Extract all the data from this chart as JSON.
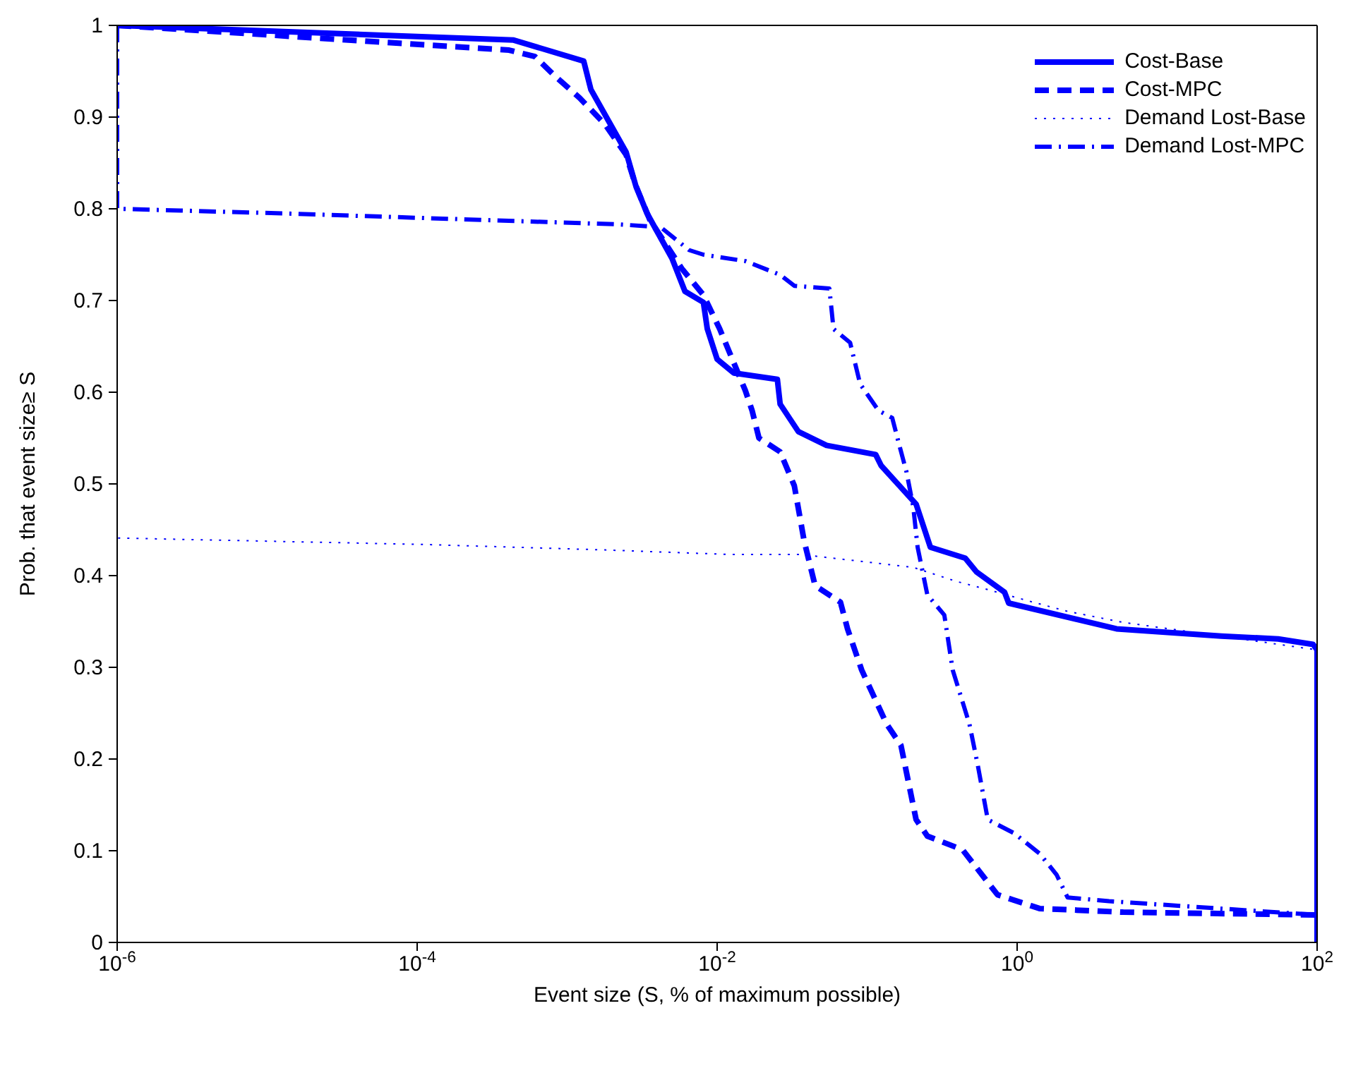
{
  "chart_data": {
    "type": "line",
    "xlabel": "Event size (S, % of maximum possible)",
    "ylabel": "Prob. that event size≥ S",
    "log": "x",
    "grid": false,
    "legend": "top right",
    "marker": "none",
    "xlim": [
      1e-06,
      100
    ],
    "xticks": [
      {
        "value": 1e-06,
        "label": "10$^{-6}$"
      },
      {
        "value": 0.0001,
        "label": "10$^{-4}$"
      },
      {
        "value": 0.01,
        "label": "10$^{-2}$"
      },
      {
        "value": 1,
        "label": "10$^{0}$"
      },
      {
        "value": 100,
        "label": "10$^{2}$"
      }
    ],
    "ylim": [
      0,
      1
    ],
    "yticks": [
      0,
      0.1,
      0.2,
      0.3,
      0.4,
      0.5,
      0.6,
      0.7,
      0.8,
      0.9,
      1
    ],
    "series": [
      {
        "name": "Cost-Base",
        "color": "#0000ff",
        "line_style": "solid",
        "x": [
          1e-06,
          0.00044,
          0.00129,
          0.00144,
          0.0019,
          0.00247,
          0.00287,
          0.00341,
          0.005,
          0.0061,
          0.0081,
          0.0086,
          0.01,
          0.0129,
          0.0252,
          0.0263,
          0.0348,
          0.0536,
          0.114,
          0.124,
          0.212,
          0.264,
          0.451,
          0.536,
          0.824,
          0.879,
          4.6,
          23,
          55,
          94,
          100,
          100
        ],
        "values": [
          1,
          0.984,
          0.961,
          0.93,
          0.895,
          0.862,
          0.825,
          0.795,
          0.746,
          0.71,
          0.698,
          0.669,
          0.636,
          0.621,
          0.614,
          0.587,
          0.557,
          0.542,
          0.532,
          0.52,
          0.478,
          0.431,
          0.419,
          0.404,
          0.382,
          0.37,
          0.342,
          0.334,
          0.331,
          0.325,
          0.319,
          0
        ]
      },
      {
        "name": "Cost-MPC",
        "color": "#0000ff",
        "line_style": "dashed",
        "x": [
          1e-06,
          0.00041,
          0.00061,
          0.00084,
          0.00121,
          0.00179,
          0.00247,
          0.00287,
          0.00356,
          0.0047,
          0.0058,
          0.0081,
          0.0104,
          0.0124,
          0.0154,
          0.0171,
          0.019,
          0.0263,
          0.0327,
          0.038,
          0.045,
          0.0664,
          0.074,
          0.092,
          0.135,
          0.168,
          0.212,
          0.252,
          0.433,
          0.74,
          1.41,
          5.1,
          100
        ],
        "values": [
          1,
          0.973,
          0.966,
          0.944,
          0.921,
          0.892,
          0.859,
          0.825,
          0.788,
          0.758,
          0.735,
          0.706,
          0.669,
          0.639,
          0.602,
          0.58,
          0.55,
          0.535,
          0.498,
          0.438,
          0.389,
          0.371,
          0.342,
          0.297,
          0.238,
          0.215,
          0.134,
          0.116,
          0.101,
          0.052,
          0.037,
          0.033,
          0.03
        ]
      },
      {
        "name": "Demand Lost-Base",
        "color": "#0000ff",
        "line_style": "dotted",
        "x": [
          1e-06,
          1e-06,
          0.000109,
          0.00179,
          0.0124,
          0.0364,
          0.086,
          0.203,
          0.388,
          0.597,
          1.28,
          2.17,
          5.1,
          23,
          100
        ],
        "values": [
          1,
          0.441,
          0.434,
          0.428,
          0.423,
          0.423,
          0.416,
          0.409,
          0.394,
          0.386,
          0.371,
          0.361,
          0.349,
          0.334,
          0.319
        ]
      },
      {
        "name": "Demand Lost-MPC",
        "color": "#0000ff",
        "line_style": "dashdot",
        "x": [
          1e-06,
          1e-06,
          1.27e-05,
          0.000109,
          0.00222,
          0.0042,
          0.0065,
          0.0081,
          0.0154,
          0.0263,
          0.0327,
          0.056,
          0.0597,
          0.077,
          0.0898,
          0.119,
          0.147,
          0.164,
          0.183,
          0.203,
          0.217,
          0.252,
          0.327,
          0.372,
          0.481,
          0.547,
          0.637,
          0.957,
          1.41,
          1.83,
          2.17,
          4.1,
          100
        ],
        "values": [
          1,
          0.8,
          0.795,
          0.79,
          0.783,
          0.78,
          0.755,
          0.75,
          0.743,
          0.728,
          0.716,
          0.713,
          0.669,
          0.654,
          0.609,
          0.58,
          0.572,
          0.542,
          0.513,
          0.475,
          0.431,
          0.379,
          0.357,
          0.297,
          0.238,
          0.193,
          0.134,
          0.119,
          0.097,
          0.074,
          0.049,
          0.045,
          0.03
        ]
      }
    ]
  }
}
